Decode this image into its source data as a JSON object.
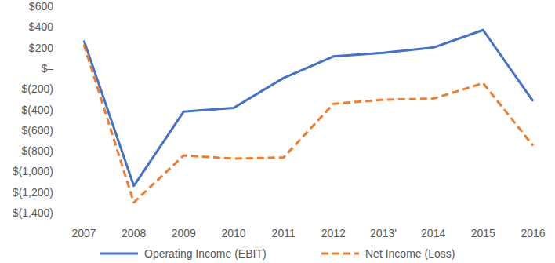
{
  "chart_data": {
    "type": "line",
    "categories": [
      "2007",
      "2008",
      "2009",
      "2010",
      "2011",
      "2012",
      "2013'",
      "2014",
      "2015",
      "2016"
    ],
    "series": [
      {
        "name": "Operating Income (EBIT)",
        "color": "#4472c4",
        "line_style": "solid",
        "values": [
          270,
          -1140,
          -420,
          -385,
          -95,
          115,
          150,
          200,
          370,
          -320
        ]
      },
      {
        "name": "Net Income (Loss)",
        "color": "#ed7d31",
        "line_style": "dashed",
        "values": [
          230,
          -1300,
          -845,
          -875,
          -865,
          -345,
          -305,
          -295,
          -145,
          -750
        ]
      }
    ],
    "ylim": [
      -1400,
      600
    ],
    "yticks": [
      {
        "value": 600,
        "label": "$600"
      },
      {
        "value": 400,
        "label": "$400"
      },
      {
        "value": 200,
        "label": "$200"
      },
      {
        "value": 0,
        "label": "$–"
      },
      {
        "value": -200,
        "label": "$(200)"
      },
      {
        "value": -400,
        "label": "$(400)"
      },
      {
        "value": -600,
        "label": "$(600)"
      },
      {
        "value": -800,
        "label": "$(800)"
      },
      {
        "value": -1000,
        "label": "$(1,000)"
      },
      {
        "value": -1200,
        "label": "$(1,200)"
      },
      {
        "value": -1400,
        "label": "$(1,400)"
      }
    ],
    "grid": false,
    "legend": "bottom"
  }
}
